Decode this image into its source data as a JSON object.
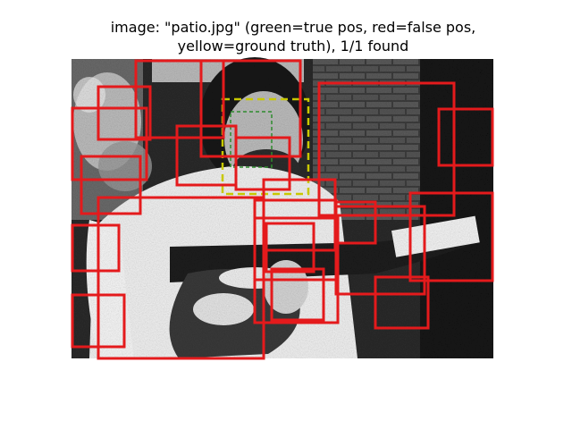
{
  "figure": {
    "title_line1": "image: \"patio.jpg\" (green=true pos, red=false pos,",
    "title_line2": "yellow=ground truth), 1/1 found",
    "image_name": "patio.jpg",
    "found_count": "1/1"
  },
  "legend_colors": {
    "true_positive": "#2e8b2e",
    "false_positive": "#e41a1c",
    "ground_truth": "#c8c800"
  },
  "detections": {
    "true_positive_count": 1,
    "false_positive_count": 27,
    "ground_truth_count": 1
  }
}
